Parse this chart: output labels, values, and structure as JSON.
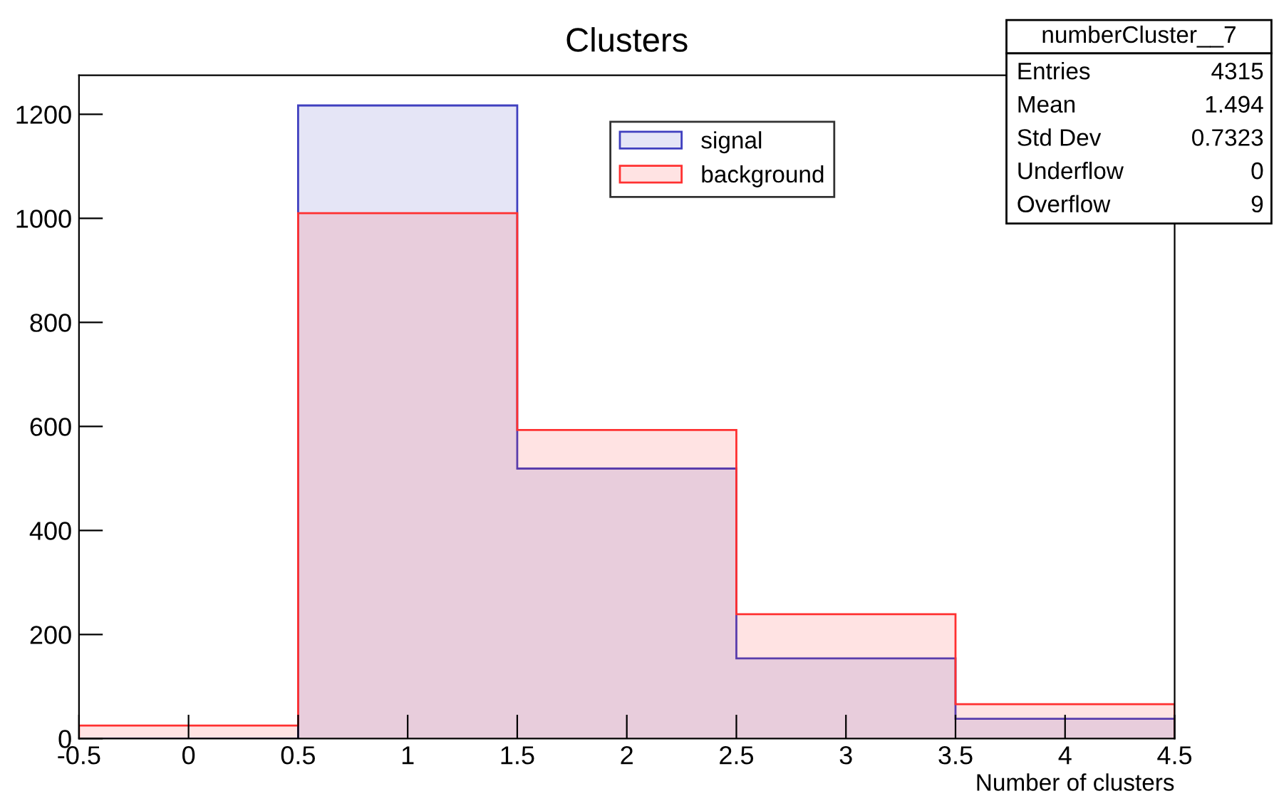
{
  "chart_data": {
    "type": "histogram",
    "title": "Clusters",
    "xlabel": "Number of clusters",
    "bins": [
      -0.5,
      0.5,
      1.5,
      2.5,
      3.5,
      4.5
    ],
    "series": [
      {
        "name": "signal",
        "color": "#3f3fbf",
        "values": [
          0,
          1217,
          519,
          154,
          38
        ]
      },
      {
        "name": "background",
        "color": "#ff3030",
        "values": [
          25,
          1010,
          593,
          239,
          66
        ]
      }
    ],
    "xlim": [
      -0.5,
      4.5
    ],
    "ylim": [
      0,
      1275
    ],
    "xticks": [
      -0.5,
      0,
      0.5,
      1,
      1.5,
      2,
      2.5,
      3,
      3.5,
      4,
      4.5
    ],
    "yticks": [
      0,
      200,
      400,
      600,
      800,
      1000,
      1200
    ],
    "grid": false,
    "legend": "top",
    "annotations": [
      "numberCluster__7",
      "Entries 4315",
      "Mean 1.494",
      "Std Dev 0.7323",
      "Underflow 0",
      "Overflow 9"
    ]
  }
}
